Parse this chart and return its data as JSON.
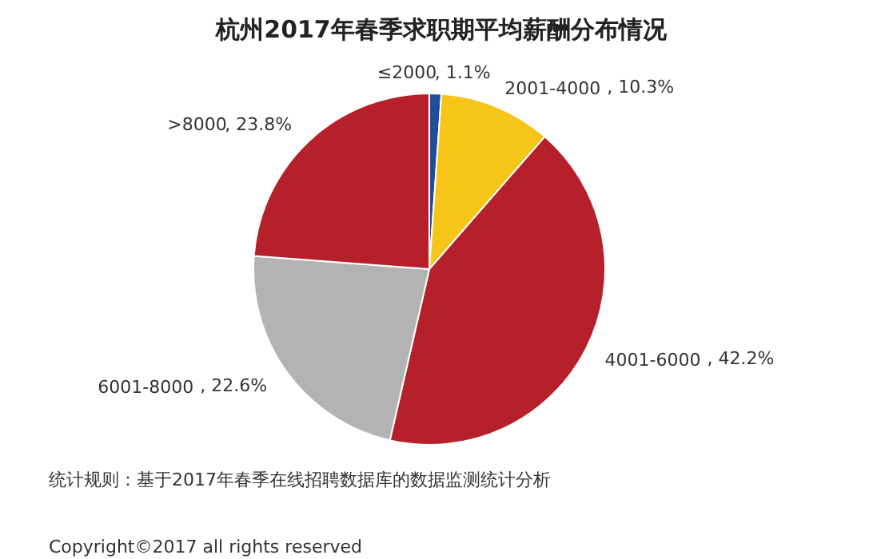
{
  "chart_data": {
    "type": "pie",
    "title": "杭州2017年春季求职期平均薪酬分布情况",
    "categories": [
      "≤2000",
      "2001-4000",
      "4001-6000",
      "6001-8000",
      ">8000"
    ],
    "values": [
      1.1,
      10.3,
      42.2,
      22.6,
      23.8
    ],
    "colors": [
      "#1f4e9a",
      "#f5c518",
      "#b5202a",
      "#b3b3b3",
      "#b5202a"
    ],
    "value_labels": [
      ", 1.1%",
      ", 10.3%",
      ", 42.2%",
      ", 22.6%",
      ", 23.8%"
    ],
    "annotations": [
      "统计规则：基于2017年春季在线招聘数据库的数据监测统计分析",
      "Copyright©2017 all rights reserved"
    ]
  }
}
